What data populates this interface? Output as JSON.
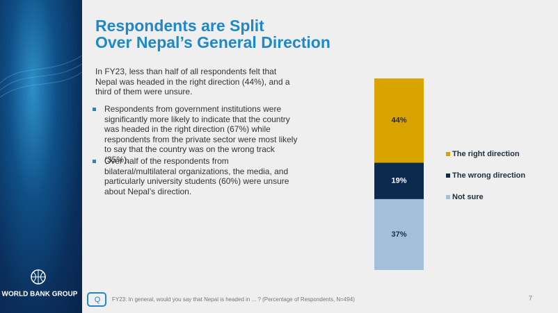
{
  "sidebar": {
    "brand": "WORLD BANK GROUP"
  },
  "title_lines": [
    "Respondents are Split",
    "Over Nepal’s General Direction"
  ],
  "intro": "In FY23, less than half of all respondents felt that Nepal was headed in the right direction (44%), and a third of them were unsure.",
  "bullets": [
    "Respondents from government institutions were significantly more likely to indicate that the country was headed in the right direction (67%) while respondents from the private sector were most likely to say that the country was on the wrong track (35%).",
    "Over half of the respondents from bilateral/multilateral organizations, the media, and particularly university students (60%) were unsure about Nepal’s direction."
  ],
  "footnote": "FY23: In general, would you say that Nepal is headed in ... ? (Percentage of Respondents, N=494)",
  "page_number": "7",
  "chart_data": {
    "type": "stacked_bar",
    "categories": [
      null
    ],
    "series": [
      {
        "name": "The right direction",
        "color": "#d9a400",
        "label_color": "#1f2d3d",
        "values": [
          44
        ],
        "value_labels": [
          "44%"
        ]
      },
      {
        "name": "The wrong direction",
        "color": "#0c2a4e",
        "label_color": "#ffffff",
        "values": [
          19
        ],
        "value_labels": [
          "19%"
        ]
      },
      {
        "name": "Not sure",
        "color": "#a3bfda",
        "label_color": "#1f2d3d",
        "values": [
          37
        ],
        "value_labels": [
          "37%"
        ]
      }
    ],
    "legend": "right"
  }
}
